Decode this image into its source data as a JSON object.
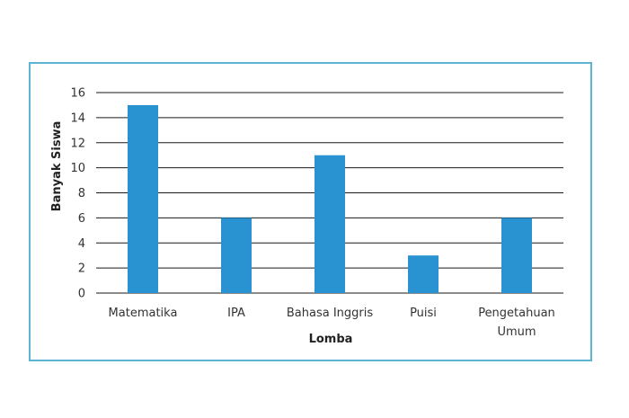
{
  "chart_data": {
    "type": "bar",
    "categories": [
      [
        "Matematika"
      ],
      [
        "IPA"
      ],
      [
        "Bahasa Inggris"
      ],
      [
        "Puisi"
      ],
      [
        "Pengetahuan",
        "Umum"
      ]
    ],
    "values": [
      15,
      6,
      11,
      3,
      6
    ],
    "xlabel": "Lomba",
    "ylabel": "Banyak Siswa",
    "ylim": [
      0,
      16
    ],
    "yticks": [
      0,
      2,
      4,
      6,
      8,
      10,
      12,
      14,
      16
    ],
    "grid": true,
    "legend": "none",
    "colors": {
      "bar": "#2993d2",
      "grid": "#1a1a1a",
      "frame": "#5ab4d2"
    }
  }
}
